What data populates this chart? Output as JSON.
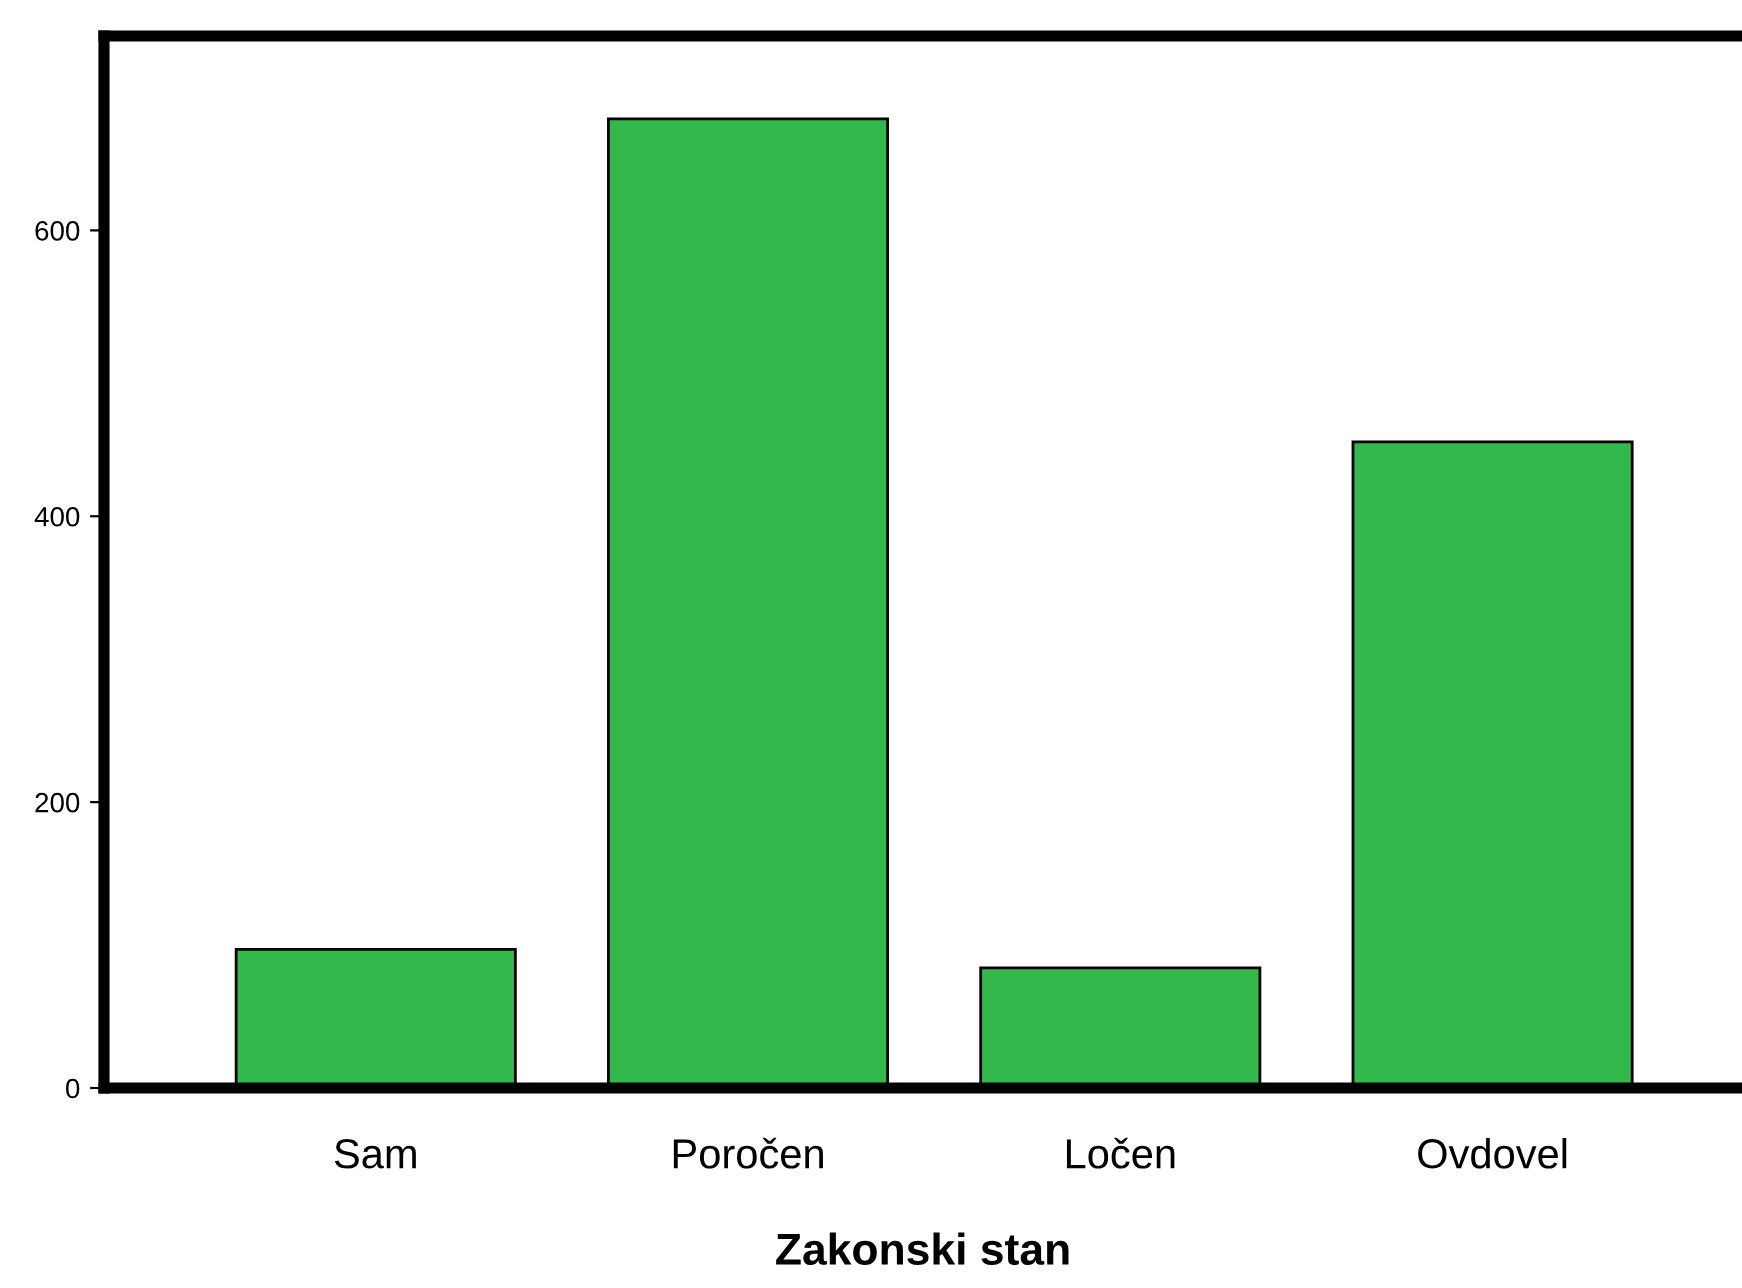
{
  "chart_data": {
    "type": "bar",
    "xlabel": "Zakonski stan",
    "categories": [
      "Sam",
      "Poročen",
      "Ločen",
      "Ovdovel"
    ],
    "values": [
      97,
      678,
      84,
      452
    ],
    "color": "#33b84b",
    "ylim": [
      0,
      736
    ],
    "yticks": [
      0,
      200,
      400,
      600
    ],
    "grid": false,
    "legend": false
  }
}
